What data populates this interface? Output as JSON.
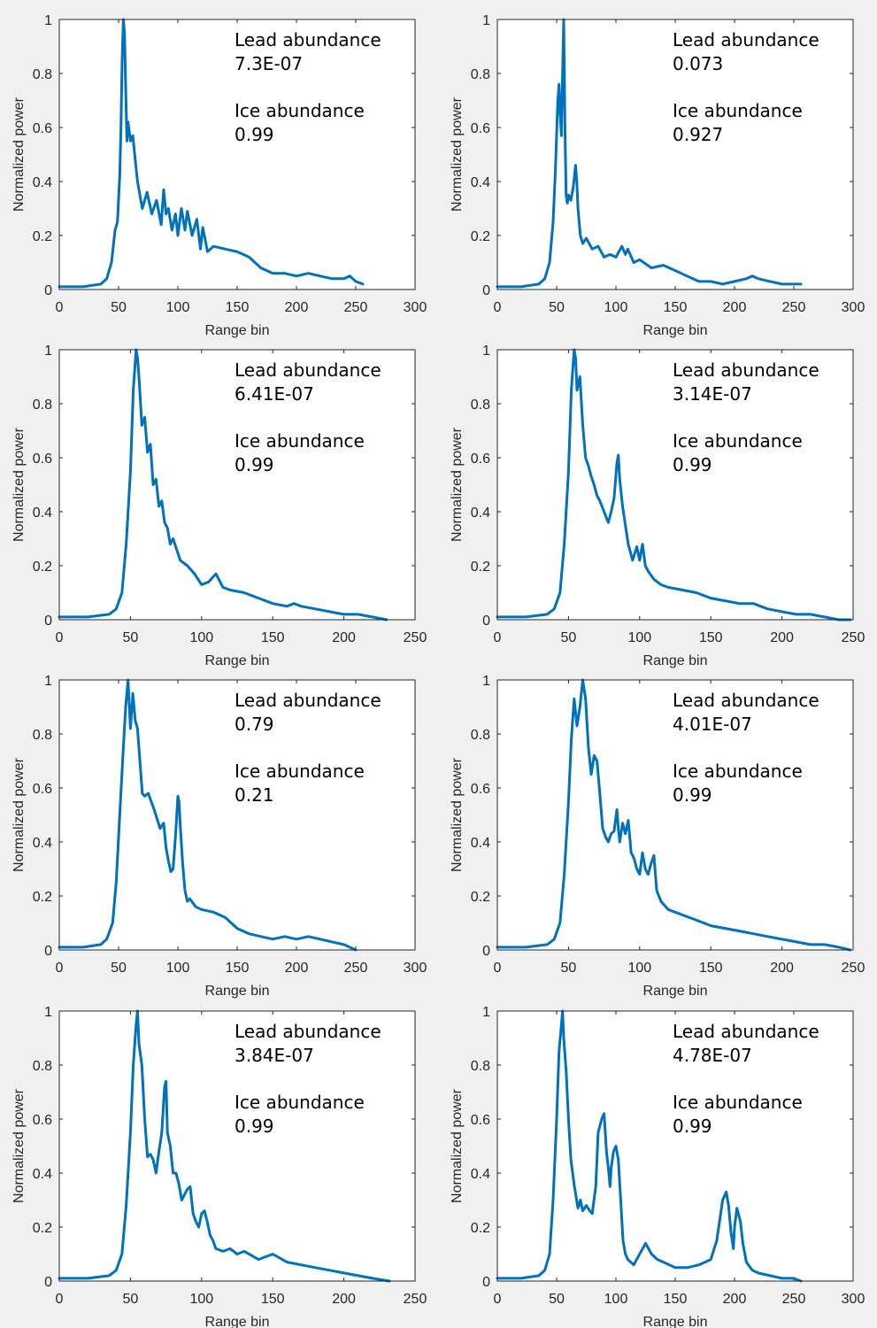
{
  "colors": {
    "line": "#0072BD",
    "background": "#f0f0f0",
    "axes_background": "#ffffff",
    "axis": "#262626"
  },
  "chart_data": [
    {
      "type": "line",
      "xlabel": "Range bin",
      "ylabel": "Normalized power",
      "xlim": [
        0,
        300
      ],
      "ylim": [
        0,
        1
      ],
      "xticks": [
        0,
        50,
        100,
        150,
        200,
        250,
        300
      ],
      "yticks": [
        0,
        0.2,
        0.4,
        0.6,
        0.8,
        1
      ],
      "annotations": {
        "lead_label": "Lead abundance",
        "lead_value": "7.3E-07",
        "ice_label": "Ice abundance",
        "ice_value": "0.99"
      },
      "series": [
        {
          "x": [
            0,
            20,
            35,
            40,
            44,
            47,
            49,
            51,
            52,
            53,
            54,
            55,
            56,
            57,
            58,
            60,
            62,
            64,
            66,
            68,
            70,
            74,
            78,
            82,
            86,
            88,
            90,
            92,
            95,
            98,
            100,
            103,
            106,
            108,
            112,
            116,
            119,
            121,
            125,
            130,
            140,
            150,
            160,
            170,
            180,
            190,
            200,
            210,
            220,
            230,
            240,
            245,
            250,
            256
          ],
          "y": [
            0.01,
            0.01,
            0.02,
            0.04,
            0.1,
            0.22,
            0.25,
            0.42,
            0.6,
            0.85,
            1.0,
            0.95,
            0.75,
            0.55,
            0.62,
            0.55,
            0.57,
            0.48,
            0.4,
            0.35,
            0.3,
            0.36,
            0.28,
            0.33,
            0.24,
            0.37,
            0.28,
            0.3,
            0.22,
            0.28,
            0.2,
            0.3,
            0.22,
            0.29,
            0.2,
            0.26,
            0.15,
            0.23,
            0.14,
            0.16,
            0.15,
            0.14,
            0.12,
            0.08,
            0.06,
            0.06,
            0.05,
            0.06,
            0.05,
            0.04,
            0.04,
            0.05,
            0.03,
            0.02
          ]
        }
      ]
    },
    {
      "type": "line",
      "xlabel": "Range bin",
      "ylabel": "Normalized power",
      "xlim": [
        0,
        300
      ],
      "ylim": [
        0,
        1
      ],
      "xticks": [
        0,
        50,
        100,
        150,
        200,
        250,
        300
      ],
      "yticks": [
        0,
        0.2,
        0.4,
        0.6,
        0.8,
        1
      ],
      "annotations": {
        "lead_label": "Lead abundance",
        "lead_value": "0.073",
        "ice_label": "Ice abundance",
        "ice_value": "0.927"
      },
      "series": [
        {
          "x": [
            0,
            20,
            35,
            40,
            44,
            47,
            49,
            51,
            52,
            53,
            54,
            55,
            56,
            57,
            58,
            59,
            60,
            62,
            64,
            66,
            67,
            68,
            70,
            72,
            75,
            80,
            85,
            90,
            95,
            100,
            105,
            108,
            110,
            115,
            120,
            130,
            140,
            150,
            160,
            170,
            180,
            190,
            200,
            210,
            215,
            220,
            230,
            240,
            250,
            256
          ],
          "y": [
            0.01,
            0.01,
            0.02,
            0.04,
            0.1,
            0.25,
            0.45,
            0.7,
            0.76,
            0.65,
            0.57,
            0.8,
            1.0,
            0.6,
            0.35,
            0.32,
            0.35,
            0.33,
            0.38,
            0.46,
            0.4,
            0.3,
            0.2,
            0.17,
            0.19,
            0.15,
            0.16,
            0.12,
            0.13,
            0.12,
            0.16,
            0.13,
            0.15,
            0.1,
            0.11,
            0.08,
            0.09,
            0.07,
            0.05,
            0.03,
            0.03,
            0.02,
            0.03,
            0.04,
            0.05,
            0.04,
            0.03,
            0.02,
            0.02,
            0.02
          ]
        }
      ]
    },
    {
      "type": "line",
      "xlabel": "Range bin",
      "ylabel": "Normalized power",
      "xlim": [
        0,
        250
      ],
      "ylim": [
        0,
        1
      ],
      "xticks": [
        0,
        50,
        100,
        150,
        200,
        250
      ],
      "yticks": [
        0,
        0.2,
        0.4,
        0.6,
        0.8,
        1
      ],
      "annotations": {
        "lead_label": "Lead abundance",
        "lead_value": "6.41E-07",
        "ice_label": "Ice abundance",
        "ice_value": "0.99"
      },
      "series": [
        {
          "x": [
            0,
            20,
            35,
            40,
            44,
            47,
            50,
            52,
            54,
            55,
            56,
            58,
            60,
            62,
            64,
            66,
            68,
            70,
            72,
            74,
            76,
            78,
            80,
            85,
            90,
            95,
            100,
            105,
            110,
            115,
            120,
            130,
            140,
            150,
            160,
            165,
            170,
            180,
            190,
            200,
            210,
            220,
            230
          ],
          "y": [
            0.01,
            0.01,
            0.02,
            0.04,
            0.1,
            0.28,
            0.55,
            0.85,
            1.0,
            0.97,
            0.9,
            0.72,
            0.75,
            0.62,
            0.65,
            0.5,
            0.52,
            0.42,
            0.44,
            0.36,
            0.34,
            0.28,
            0.3,
            0.22,
            0.2,
            0.17,
            0.13,
            0.14,
            0.17,
            0.12,
            0.11,
            0.1,
            0.08,
            0.06,
            0.05,
            0.06,
            0.05,
            0.04,
            0.03,
            0.02,
            0.02,
            0.01,
            0.0
          ]
        }
      ]
    },
    {
      "type": "line",
      "xlabel": "Range bin",
      "ylabel": "Normalized power",
      "xlim": [
        0,
        250
      ],
      "ylim": [
        0,
        1
      ],
      "xticks": [
        0,
        50,
        100,
        150,
        200,
        250
      ],
      "yticks": [
        0,
        0.2,
        0.4,
        0.6,
        0.8,
        1
      ],
      "annotations": {
        "lead_label": "Lead abundance",
        "lead_value": "3.14E-07",
        "ice_label": "Ice abundance",
        "ice_value": "0.99"
      },
      "series": [
        {
          "x": [
            0,
            20,
            35,
            40,
            44,
            47,
            50,
            52,
            54,
            55,
            56,
            58,
            60,
            62,
            64,
            66,
            68,
            70,
            72,
            75,
            78,
            80,
            82,
            84,
            85,
            86,
            88,
            90,
            92,
            95,
            98,
            100,
            102,
            104,
            106,
            110,
            115,
            120,
            130,
            140,
            150,
            160,
            170,
            180,
            190,
            200,
            210,
            220,
            230,
            240,
            248
          ],
          "y": [
            0.01,
            0.01,
            0.02,
            0.04,
            0.1,
            0.28,
            0.55,
            0.85,
            1.0,
            0.97,
            0.85,
            0.9,
            0.72,
            0.6,
            0.57,
            0.53,
            0.5,
            0.46,
            0.44,
            0.4,
            0.36,
            0.4,
            0.45,
            0.58,
            0.61,
            0.52,
            0.42,
            0.35,
            0.28,
            0.22,
            0.27,
            0.22,
            0.28,
            0.2,
            0.18,
            0.15,
            0.13,
            0.12,
            0.11,
            0.1,
            0.08,
            0.07,
            0.06,
            0.06,
            0.04,
            0.03,
            0.02,
            0.02,
            0.01,
            0.0,
            0.0
          ]
        }
      ]
    },
    {
      "type": "line",
      "xlabel": "Range bin",
      "ylabel": "Normalized power",
      "xlim": [
        0,
        300
      ],
      "ylim": [
        0,
        1
      ],
      "xticks": [
        0,
        50,
        100,
        150,
        200,
        250,
        300
      ],
      "yticks": [
        0,
        0.2,
        0.4,
        0.6,
        0.8,
        1
      ],
      "annotations": {
        "lead_label": "Lead abundance",
        "lead_value": "0.79",
        "ice_label": "Ice abundance",
        "ice_value": "0.21"
      },
      "series": [
        {
          "x": [
            0,
            20,
            35,
            40,
            45,
            48,
            51,
            54,
            56,
            58,
            60,
            62,
            64,
            66,
            68,
            70,
            72,
            75,
            80,
            85,
            88,
            90,
            92,
            94,
            96,
            98,
            100,
            101,
            102,
            104,
            106,
            108,
            110,
            115,
            120,
            130,
            140,
            150,
            160,
            170,
            180,
            190,
            200,
            210,
            220,
            230,
            240,
            250
          ],
          "y": [
            0.01,
            0.01,
            0.02,
            0.04,
            0.1,
            0.25,
            0.5,
            0.75,
            0.9,
            1.0,
            0.82,
            0.95,
            0.85,
            0.82,
            0.7,
            0.58,
            0.57,
            0.58,
            0.52,
            0.45,
            0.47,
            0.38,
            0.33,
            0.29,
            0.3,
            0.42,
            0.57,
            0.55,
            0.46,
            0.32,
            0.22,
            0.18,
            0.19,
            0.16,
            0.15,
            0.14,
            0.12,
            0.08,
            0.06,
            0.05,
            0.04,
            0.05,
            0.04,
            0.05,
            0.04,
            0.03,
            0.02,
            0.0
          ]
        }
      ]
    },
    {
      "type": "line",
      "xlabel": "Range bin",
      "ylabel": "Normalized power",
      "xlim": [
        0,
        250
      ],
      "ylim": [
        0,
        1
      ],
      "xticks": [
        0,
        50,
        100,
        150,
        200,
        250
      ],
      "yticks": [
        0,
        0.2,
        0.4,
        0.6,
        0.8,
        1
      ],
      "annotations": {
        "lead_label": "Lead abundance",
        "lead_value": "4.01E-07",
        "ice_label": "Ice abundance",
        "ice_value": "0.99"
      },
      "series": [
        {
          "x": [
            0,
            20,
            35,
            40,
            44,
            47,
            50,
            52,
            54,
            56,
            58,
            60,
            62,
            64,
            66,
            68,
            70,
            72,
            74,
            76,
            78,
            80,
            82,
            84,
            85,
            86,
            88,
            90,
            92,
            94,
            96,
            98,
            100,
            102,
            104,
            106,
            108,
            110,
            112,
            115,
            120,
            130,
            140,
            150,
            160,
            170,
            180,
            190,
            200,
            210,
            220,
            230,
            240,
            248
          ],
          "y": [
            0.01,
            0.01,
            0.02,
            0.04,
            0.1,
            0.28,
            0.55,
            0.78,
            0.93,
            0.83,
            0.9,
            1.0,
            0.93,
            0.75,
            0.65,
            0.72,
            0.7,
            0.58,
            0.45,
            0.42,
            0.4,
            0.43,
            0.44,
            0.52,
            0.45,
            0.4,
            0.47,
            0.43,
            0.48,
            0.36,
            0.34,
            0.3,
            0.28,
            0.36,
            0.3,
            0.28,
            0.32,
            0.35,
            0.22,
            0.18,
            0.15,
            0.13,
            0.11,
            0.09,
            0.08,
            0.07,
            0.06,
            0.05,
            0.04,
            0.03,
            0.02,
            0.02,
            0.01,
            0.0
          ]
        }
      ]
    },
    {
      "type": "line",
      "xlabel": "Range bin",
      "ylabel": "Normalized power",
      "xlim": [
        0,
        250
      ],
      "ylim": [
        0,
        1
      ],
      "xticks": [
        0,
        50,
        100,
        150,
        200,
        250
      ],
      "yticks": [
        0,
        0.2,
        0.4,
        0.6,
        0.8,
        1
      ],
      "annotations": {
        "lead_label": "Lead abundance",
        "lead_value": "3.84E-07",
        "ice_label": "Ice abundance",
        "ice_value": "0.99"
      },
      "series": [
        {
          "x": [
            0,
            20,
            35,
            40,
            44,
            47,
            50,
            52,
            54,
            55,
            56,
            58,
            60,
            62,
            64,
            66,
            68,
            70,
            72,
            74,
            75,
            76,
            78,
            80,
            82,
            84,
            86,
            88,
            90,
            92,
            94,
            96,
            98,
            100,
            102,
            104,
            106,
            108,
            110,
            115,
            120,
            125,
            130,
            140,
            150,
            160,
            170,
            180,
            190,
            200,
            210,
            220,
            232
          ],
          "y": [
            0.01,
            0.01,
            0.02,
            0.04,
            0.1,
            0.28,
            0.55,
            0.8,
            0.95,
            1.0,
            0.88,
            0.8,
            0.6,
            0.46,
            0.47,
            0.45,
            0.4,
            0.48,
            0.55,
            0.72,
            0.74,
            0.55,
            0.5,
            0.4,
            0.4,
            0.36,
            0.3,
            0.32,
            0.34,
            0.35,
            0.25,
            0.22,
            0.2,
            0.25,
            0.26,
            0.22,
            0.17,
            0.15,
            0.12,
            0.11,
            0.12,
            0.1,
            0.11,
            0.08,
            0.1,
            0.07,
            0.06,
            0.05,
            0.04,
            0.03,
            0.02,
            0.01,
            0.0
          ]
        }
      ]
    },
    {
      "type": "line",
      "xlabel": "Range bin",
      "ylabel": "Normalized power",
      "xlim": [
        0,
        300
      ],
      "ylim": [
        0,
        1
      ],
      "xticks": [
        0,
        50,
        100,
        150,
        200,
        250,
        300
      ],
      "yticks": [
        0,
        0.2,
        0.4,
        0.6,
        0.8,
        1
      ],
      "annotations": {
        "lead_label": "Lead abundance",
        "lead_value": "4.78E-07",
        "ice_label": "Ice abundance",
        "ice_value": "0.99"
      },
      "series": [
        {
          "x": [
            0,
            20,
            35,
            40,
            44,
            47,
            50,
            52,
            54,
            55,
            56,
            58,
            60,
            62,
            65,
            68,
            70,
            72,
            75,
            78,
            80,
            83,
            85,
            88,
            90,
            92,
            94,
            95,
            96,
            98,
            100,
            102,
            104,
            106,
            108,
            110,
            115,
            120,
            125,
            130,
            135,
            140,
            145,
            150,
            160,
            170,
            180,
            185,
            190,
            193,
            195,
            197,
            199,
            200,
            202,
            205,
            207,
            210,
            215,
            220,
            230,
            240,
            250,
            256
          ],
          "y": [
            0.01,
            0.01,
            0.02,
            0.04,
            0.1,
            0.3,
            0.6,
            0.85,
            0.95,
            1.0,
            0.9,
            0.78,
            0.6,
            0.45,
            0.35,
            0.27,
            0.3,
            0.26,
            0.28,
            0.26,
            0.25,
            0.35,
            0.55,
            0.6,
            0.62,
            0.48,
            0.4,
            0.35,
            0.42,
            0.48,
            0.5,
            0.45,
            0.3,
            0.15,
            0.1,
            0.08,
            0.06,
            0.1,
            0.14,
            0.1,
            0.08,
            0.07,
            0.06,
            0.05,
            0.05,
            0.06,
            0.08,
            0.15,
            0.3,
            0.33,
            0.28,
            0.18,
            0.12,
            0.2,
            0.27,
            0.22,
            0.14,
            0.07,
            0.04,
            0.03,
            0.02,
            0.01,
            0.01,
            0.0
          ]
        }
      ]
    }
  ]
}
